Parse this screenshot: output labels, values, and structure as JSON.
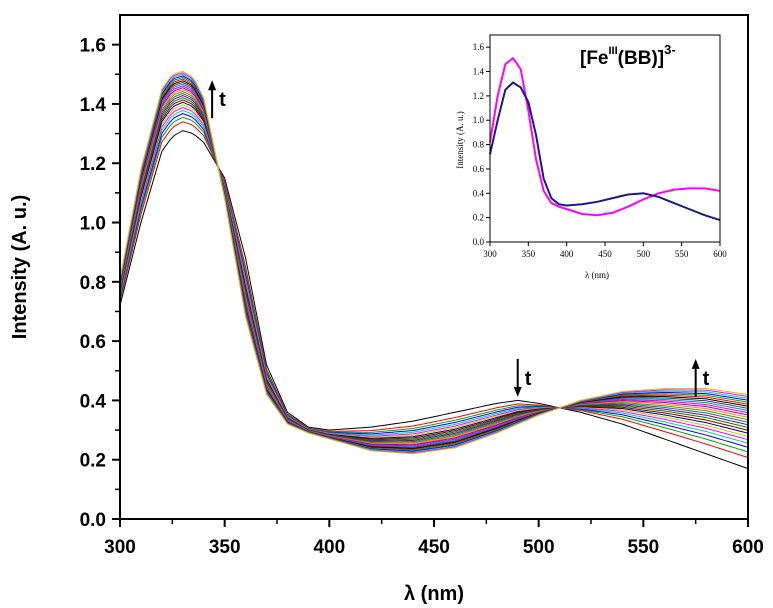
{
  "chart_data": [
    {
      "type": "line",
      "xlabel": "λ (nm)",
      "ylabel": "Intensity (A. u.)",
      "xlim": [
        300,
        600
      ],
      "ylim": [
        0,
        1.7
      ],
      "xticks": [
        300,
        350,
        400,
        450,
        500,
        550,
        600
      ],
      "xtick_labels": [
        "300",
        "350",
        "400",
        "450",
        "500",
        "550",
        "600"
      ],
      "yticks": [
        0,
        0.2,
        0.4,
        0.6,
        0.8,
        1.0,
        1.2,
        1.4,
        1.6
      ],
      "ytick_labels": [
        "0.0",
        "0.2",
        "0.4",
        "0.6",
        "0.8",
        "1.0",
        "1.2",
        "1.4",
        "1.6"
      ],
      "grid": false,
      "series_count": 25,
      "curve_colors": [
        "#000000",
        "#ff0000",
        "#00aa00",
        "#0000ff",
        "#00cccc",
        "#ff00ff",
        "#cccc00",
        "#000080",
        "#800000",
        "#008000",
        "#800080",
        "#008080",
        "#808000",
        "#ff8000",
        "#8000ff",
        "#ff0080",
        "#0080ff",
        "#404040"
      ],
      "first_curve": {
        "x": [
          300,
          310,
          320,
          325,
          330,
          335,
          340,
          350,
          360,
          370,
          380,
          390,
          400,
          420,
          440,
          460,
          480,
          490,
          500,
          520,
          540,
          560,
          580,
          600
        ],
        "y": [
          0.72,
          1.0,
          1.24,
          1.29,
          1.31,
          1.3,
          1.27,
          1.15,
          0.88,
          0.52,
          0.36,
          0.31,
          0.3,
          0.31,
          0.33,
          0.36,
          0.39,
          0.4,
          0.39,
          0.36,
          0.32,
          0.27,
          0.22,
          0.17
        ]
      },
      "last_curve": {
        "x": [
          300,
          310,
          320,
          325,
          330,
          335,
          340,
          350,
          360,
          370,
          380,
          390,
          400,
          420,
          440,
          460,
          480,
          500,
          520,
          540,
          560,
          580,
          600
        ],
        "y": [
          0.81,
          1.18,
          1.45,
          1.5,
          1.51,
          1.49,
          1.42,
          1.08,
          0.68,
          0.42,
          0.32,
          0.29,
          0.27,
          0.23,
          0.22,
          0.24,
          0.29,
          0.35,
          0.4,
          0.43,
          0.44,
          0.44,
          0.42
        ]
      },
      "annotations": [
        {
          "text": "t",
          "arrow": "up",
          "x": 344,
          "y": 1.48
        },
        {
          "text": "t",
          "arrow": "down",
          "x": 490,
          "y": 0.54
        },
        {
          "text": "t",
          "arrow": "up",
          "x": 575,
          "y": 0.54
        }
      ]
    },
    {
      "type": "line",
      "role": "inset",
      "title_base": "[Fe",
      "title_sup_ox": "III",
      "title_mid": "(BB)]",
      "title_sup_charge": "3-",
      "xlabel": "λ (nm)",
      "ylabel": "Intensity (A. u.)",
      "xlim": [
        300,
        600
      ],
      "ylim": [
        0,
        1.7
      ],
      "xticks": [
        300,
        350,
        400,
        450,
        500,
        550,
        600
      ],
      "xtick_labels": [
        "300",
        "350",
        "400",
        "450",
        "500",
        "550",
        "600"
      ],
      "yticks": [
        0,
        0.2,
        0.4,
        0.6,
        0.8,
        1.0,
        1.2,
        1.4,
        1.6
      ],
      "ytick_labels": [
        "0.0",
        "0.2",
        "0.4",
        "0.6",
        "0.8",
        "1.0",
        "1.2",
        "1.4",
        "1.6"
      ],
      "series": [
        {
          "color": "#ff00ff",
          "x": [
            300,
            310,
            320,
            330,
            340,
            350,
            360,
            370,
            380,
            390,
            400,
            420,
            440,
            460,
            480,
            500,
            520,
            540,
            560,
            580,
            600
          ],
          "y": [
            0.82,
            1.2,
            1.46,
            1.51,
            1.42,
            1.08,
            0.68,
            0.42,
            0.32,
            0.29,
            0.27,
            0.23,
            0.22,
            0.24,
            0.29,
            0.35,
            0.4,
            0.43,
            0.44,
            0.44,
            0.42
          ]
        },
        {
          "color": "#1a1a80",
          "x": [
            300,
            310,
            320,
            330,
            340,
            350,
            360,
            370,
            380,
            390,
            400,
            420,
            440,
            460,
            480,
            500,
            520,
            540,
            560,
            580,
            600
          ],
          "y": [
            0.72,
            1.0,
            1.25,
            1.31,
            1.27,
            1.15,
            0.88,
            0.52,
            0.36,
            0.31,
            0.3,
            0.31,
            0.33,
            0.36,
            0.39,
            0.4,
            0.37,
            0.32,
            0.27,
            0.22,
            0.18
          ]
        }
      ]
    }
  ]
}
